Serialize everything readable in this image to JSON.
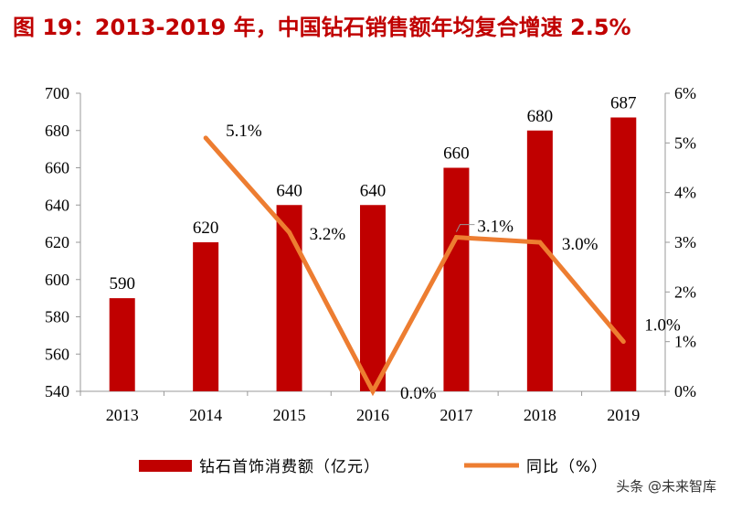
{
  "title": "图 19：2013-2019 年，中国钻石销售额年均复合增速 2.5%",
  "watermark": "头条 @未来智库",
  "colors": {
    "bar": "#c00000",
    "line": "#ed7d31",
    "title": "#c00000"
  },
  "chart_data": {
    "type": "bar",
    "categories": [
      "2013",
      "2014",
      "2015",
      "2016",
      "2017",
      "2018",
      "2019"
    ],
    "series": [
      {
        "name": "钻石首饰消费额（亿元）",
        "type": "bar",
        "axis": "left",
        "values": [
          590,
          620,
          640,
          640,
          660,
          680,
          687
        ],
        "labels": [
          "590",
          "620",
          "640",
          "640",
          "660",
          "680",
          "687"
        ]
      },
      {
        "name": "同比（%）",
        "type": "line",
        "axis": "right",
        "values": [
          null,
          5.1,
          3.2,
          0.0,
          3.1,
          3.0,
          1.0
        ],
        "labels": [
          "",
          "5.1%",
          "3.2%",
          "0.0%",
          "3.1%",
          "3.0%",
          "1.0%"
        ]
      }
    ],
    "y_left": {
      "lim": [
        540,
        700
      ],
      "ticks": [
        "540",
        "560",
        "580",
        "600",
        "620",
        "640",
        "660",
        "680",
        "700"
      ]
    },
    "y_right": {
      "lim": [
        0,
        6
      ],
      "ticks": [
        "0%",
        "1%",
        "2%",
        "3%",
        "4%",
        "5%",
        "6%"
      ]
    },
    "grid": false,
    "legend": "bottom"
  }
}
